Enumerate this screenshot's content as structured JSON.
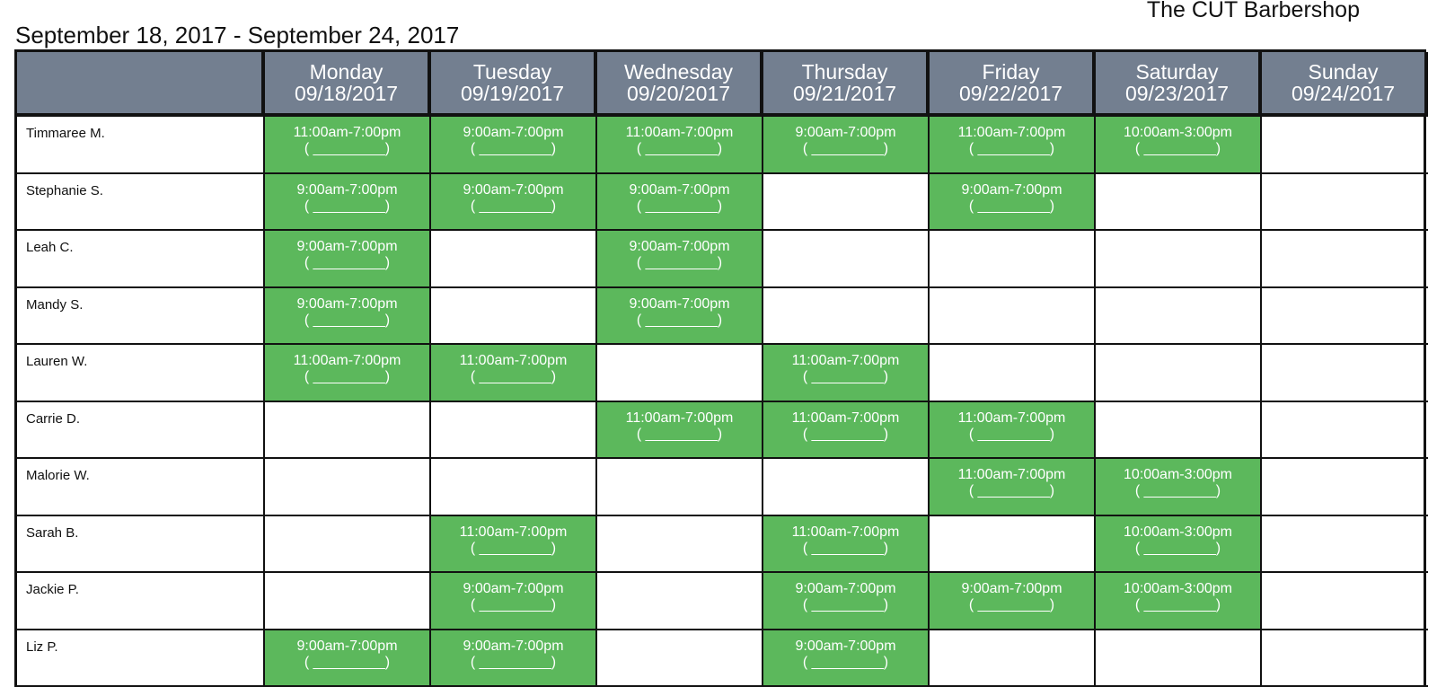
{
  "shop_name": "The CUT Barbershop",
  "week_range": "September 18, 2017 - September 24, 2017",
  "colors": {
    "header_bg": "#737f90",
    "shift_bg": "#5cb85c",
    "border": "#111111"
  },
  "signoff_blank": "( _________)",
  "days": [
    {
      "name": "Monday",
      "date": "09/18/2017"
    },
    {
      "name": "Tuesday",
      "date": "09/19/2017"
    },
    {
      "name": "Wednesday",
      "date": "09/20/2017"
    },
    {
      "name": "Thursday",
      "date": "09/21/2017"
    },
    {
      "name": "Friday",
      "date": "09/22/2017"
    },
    {
      "name": "Saturday",
      "date": "09/23/2017"
    },
    {
      "name": "Sunday",
      "date": "09/24/2017"
    }
  ],
  "employees": [
    {
      "name": "Timmaree M.",
      "shifts": [
        "11:00am-7:00pm",
        "9:00am-7:00pm",
        "11:00am-7:00pm",
        "9:00am-7:00pm",
        "11:00am-7:00pm",
        "10:00am-3:00pm",
        null
      ]
    },
    {
      "name": "Stephanie S.",
      "shifts": [
        "9:00am-7:00pm",
        "9:00am-7:00pm",
        "9:00am-7:00pm",
        null,
        "9:00am-7:00pm",
        null,
        null
      ]
    },
    {
      "name": "Leah C.",
      "shifts": [
        "9:00am-7:00pm",
        null,
        "9:00am-7:00pm",
        null,
        null,
        null,
        null
      ]
    },
    {
      "name": "Mandy S.",
      "shifts": [
        "9:00am-7:00pm",
        null,
        "9:00am-7:00pm",
        null,
        null,
        null,
        null
      ]
    },
    {
      "name": "Lauren W.",
      "shifts": [
        "11:00am-7:00pm",
        "11:00am-7:00pm",
        null,
        "11:00am-7:00pm",
        null,
        null,
        null
      ]
    },
    {
      "name": "Carrie D.",
      "shifts": [
        null,
        null,
        "11:00am-7:00pm",
        "11:00am-7:00pm",
        "11:00am-7:00pm",
        null,
        null
      ]
    },
    {
      "name": "Malorie W.",
      "shifts": [
        null,
        null,
        null,
        null,
        "11:00am-7:00pm",
        "10:00am-3:00pm",
        null
      ]
    },
    {
      "name": "Sarah B.",
      "shifts": [
        null,
        "11:00am-7:00pm",
        null,
        "11:00am-7:00pm",
        null,
        "10:00am-3:00pm",
        null
      ]
    },
    {
      "name": "Jackie P.",
      "shifts": [
        null,
        "9:00am-7:00pm",
        null,
        "9:00am-7:00pm",
        "9:00am-7:00pm",
        "10:00am-3:00pm",
        null
      ]
    },
    {
      "name": "Liz P.",
      "shifts": [
        "9:00am-7:00pm",
        "9:00am-7:00pm",
        null,
        "9:00am-7:00pm",
        null,
        null,
        null
      ]
    }
  ]
}
